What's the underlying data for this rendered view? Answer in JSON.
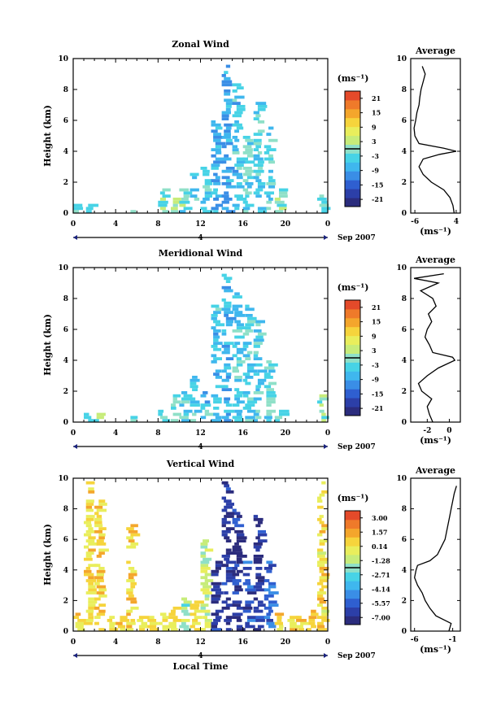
{
  "chart_data": [
    {
      "type": "heatmap",
      "title": "Zonal Wind",
      "ylabel": "Height (km)",
      "xlabel": "",
      "xlim": [
        0,
        24
      ],
      "ylim": [
        0,
        10
      ],
      "x_ticks": [
        "0",
        "4",
        "8",
        "12",
        "16",
        "20",
        "0"
      ],
      "y_ticks": [
        "0",
        "2",
        "4",
        "6",
        "8",
        "10"
      ],
      "date_marker": "4",
      "date_label": "Sep 2007",
      "colorbar_unit": "(ms⁻¹)",
      "colorbar_ticks": [
        "21",
        "15",
        "9",
        "3",
        "-3",
        "-9",
        "-15",
        "-21"
      ],
      "colorbar_range": [
        -24,
        24
      ],
      "cells": [
        {
          "x": 0.5,
          "ymax": 0.7,
          "v": -2
        },
        {
          "x": 1.5,
          "ymax": 0.6,
          "v": 1
        },
        {
          "x": 5.5,
          "ymax": 0.3,
          "v": 0
        },
        {
          "x": 8.5,
          "ymax": 1.5,
          "v": -1
        },
        {
          "x": 9.5,
          "ymax": 1.0,
          "v": 1
        },
        {
          "x": 10.5,
          "ymax": 1.5,
          "v": -2
        },
        {
          "x": 11.5,
          "ymax": 2.5,
          "v": -4
        },
        {
          "x": 12.5,
          "ymax": 3.0,
          "v": -5
        },
        {
          "x": 13.5,
          "ymax": 6.0,
          "v": -7
        },
        {
          "x": 14.5,
          "ymax": 9.6,
          "v": -8
        },
        {
          "x": 15.5,
          "ymax": 8.8,
          "v": -6
        },
        {
          "x": 16.5,
          "ymax": 5.0,
          "v": -3
        },
        {
          "x": 17.5,
          "ymax": 7.2,
          "v": -5
        },
        {
          "x": 18.5,
          "ymax": 5.5,
          "v": -4
        },
        {
          "x": 19.5,
          "ymax": 1.5,
          "v": 1
        },
        {
          "x": 23.5,
          "ymax": 1.2,
          "v": -1
        }
      ],
      "avg_profile": {
        "title": "Average",
        "xlabel": "(ms⁻¹)",
        "xlim": [
          -7,
          5
        ],
        "x_ticks": [
          "-6",
          "4"
        ],
        "y_ticks": [
          "0",
          "2",
          "4",
          "6",
          "8",
          "10"
        ],
        "height": [
          0,
          0.5,
          1,
          1.5,
          2,
          2.5,
          3,
          3.5,
          3.8,
          4.0,
          4.2,
          4.5,
          5,
          5.5,
          6,
          6.5,
          7,
          7.5,
          8,
          8.5,
          9,
          9.5
        ],
        "value": [
          3.5,
          3.2,
          2.5,
          1.0,
          -2,
          -4,
          -5,
          -4,
          0,
          4.0,
          1.0,
          -5,
          -6,
          -6.2,
          -5.8,
          -5.5,
          -5.0,
          -4.8,
          -4.5,
          -4.0,
          -3.5,
          -4.2
        ]
      }
    },
    {
      "type": "heatmap",
      "title": "Meridional Wind",
      "ylabel": "Height (km)",
      "xlabel": "",
      "xlim": [
        0,
        24
      ],
      "ylim": [
        0,
        10
      ],
      "x_ticks": [
        "0",
        "4",
        "8",
        "12",
        "16",
        "20",
        "0"
      ],
      "y_ticks": [
        "0",
        "2",
        "4",
        "6",
        "8",
        "10"
      ],
      "date_marker": "4",
      "date_label": "Sep 2007",
      "colorbar_unit": "(ms⁻¹)",
      "colorbar_ticks": [
        "21",
        "15",
        "9",
        "3",
        "-3",
        "-9",
        "-15",
        "-21"
      ],
      "colorbar_range": [
        -24,
        24
      ],
      "cells": [
        {
          "x": 1.5,
          "ymax": 0.7,
          "v": -2
        },
        {
          "x": 2.5,
          "ymax": 0.5,
          "v": 0
        },
        {
          "x": 5.5,
          "ymax": 0.4,
          "v": -1
        },
        {
          "x": 8.5,
          "ymax": 0.8,
          "v": -2
        },
        {
          "x": 9.5,
          "ymax": 1.8,
          "v": -3
        },
        {
          "x": 10.5,
          "ymax": 2.2,
          "v": -4
        },
        {
          "x": 11.5,
          "ymax": 3.0,
          "v": -4
        },
        {
          "x": 12.5,
          "ymax": 2.0,
          "v": -5
        },
        {
          "x": 13.5,
          "ymax": 7.5,
          "v": -6
        },
        {
          "x": 14.5,
          "ymax": 9.6,
          "v": -7
        },
        {
          "x": 15.5,
          "ymax": 8.5,
          "v": -5
        },
        {
          "x": 16.5,
          "ymax": 7.5,
          "v": -4
        },
        {
          "x": 17.5,
          "ymax": 6.5,
          "v": -4
        },
        {
          "x": 18.5,
          "ymax": 4.0,
          "v": -3
        },
        {
          "x": 19.5,
          "ymax": 0.8,
          "v": -1
        },
        {
          "x": 23.5,
          "ymax": 1.8,
          "v": 0
        }
      ],
      "avg_profile": {
        "title": "Average",
        "xlabel": "(ms⁻¹)",
        "xlim": [
          -3.5,
          1
        ],
        "x_ticks": [
          "-2",
          "0"
        ],
        "y_ticks": [
          "0",
          "2",
          "4",
          "6",
          "8",
          "10"
        ],
        "height": [
          0,
          0.5,
          1,
          1.5,
          2,
          2.5,
          3,
          3.5,
          4.0,
          4.2,
          4.5,
          5,
          5.5,
          6,
          6.5,
          7,
          7.5,
          8,
          8.5,
          9,
          9.3,
          9.6
        ],
        "value": [
          -1.5,
          -1.8,
          -2.0,
          -1.6,
          -2.5,
          -2.8,
          -2.0,
          -1.0,
          0.5,
          0.3,
          -1.5,
          -1.8,
          -2.2,
          -2.0,
          -1.6,
          -1.9,
          -1.2,
          -1.5,
          -2.6,
          -1.0,
          -3.2,
          -0.5
        ]
      }
    },
    {
      "type": "heatmap",
      "title": "Vertical Wind",
      "ylabel": "Height (km)",
      "xlabel": "Local Time",
      "xlim": [
        0,
        24
      ],
      "ylim": [
        0,
        10
      ],
      "x_ticks": [
        "0",
        "4",
        "8",
        "12",
        "16",
        "20",
        "0"
      ],
      "y_ticks": [
        "0",
        "2",
        "4",
        "6",
        "8",
        "10"
      ],
      "date_marker": "4",
      "date_label": "Sep 2007",
      "colorbar_unit": "(ms⁻¹)",
      "colorbar_ticks": [
        "3.00",
        "1.57",
        "0.14",
        "-1.28",
        "-2.71",
        "-4.14",
        "-5.57",
        "-7.00"
      ],
      "colorbar_range": [
        -7.7,
        3.7
      ],
      "cells": [
        {
          "x": 0.5,
          "ymax": 1.2,
          "v": 0.5
        },
        {
          "x": 1.5,
          "ymax": 9.8,
          "v": 0.4
        },
        {
          "x": 2.5,
          "ymax": 8.5,
          "v": 0.5
        },
        {
          "x": 3.5,
          "ymax": 1.0,
          "v": 0.4
        },
        {
          "x": 4.5,
          "ymax": 0.9,
          "v": 0.5
        },
        {
          "x": 5.5,
          "ymax": 7.0,
          "v": 0.5
        },
        {
          "x": 6.5,
          "ymax": 0.9,
          "v": 0.4
        },
        {
          "x": 7.5,
          "ymax": 0.9,
          "v": 0.4
        },
        {
          "x": 8.5,
          "ymax": 1.2,
          "v": 0.4
        },
        {
          "x": 9.5,
          "ymax": 1.5,
          "v": 0.5
        },
        {
          "x": 10.5,
          "ymax": 2.2,
          "v": -1.5
        },
        {
          "x": 11.5,
          "ymax": 2.0,
          "v": 0.2
        },
        {
          "x": 12.5,
          "ymax": 6.0,
          "v": -1.0
        },
        {
          "x": 13.5,
          "ymax": 4.8,
          "v": -6.5
        },
        {
          "x": 14.5,
          "ymax": 9.8,
          "v": -6.8
        },
        {
          "x": 15.5,
          "ymax": 8.0,
          "v": -6.5
        },
        {
          "x": 16.5,
          "ymax": 4.5,
          "v": -6.0
        },
        {
          "x": 17.5,
          "ymax": 7.5,
          "v": -6.5
        },
        {
          "x": 18.5,
          "ymax": 4.5,
          "v": -5.5
        },
        {
          "x": 19.5,
          "ymax": 1.2,
          "v": 0.4
        },
        {
          "x": 20.5,
          "ymax": 1.0,
          "v": 0.4
        },
        {
          "x": 21.5,
          "ymax": 1.0,
          "v": 0.4
        },
        {
          "x": 22.5,
          "ymax": 1.3,
          "v": 0.5
        },
        {
          "x": 23.5,
          "ymax": 9.8,
          "v": 0.3
        }
      ],
      "avg_profile": {
        "title": "Average",
        "xlabel": "(ms⁻¹)",
        "xlim": [
          -6.5,
          0
        ],
        "x_ticks": [
          "-6",
          "-1"
        ],
        "y_ticks": [
          "0",
          "2",
          "4",
          "6",
          "8",
          "10"
        ],
        "height": [
          0,
          0.5,
          1,
          1.5,
          2,
          2.5,
          3,
          3.5,
          4.0,
          4.3,
          4.6,
          5,
          5.5,
          6,
          6.5,
          7,
          7.5,
          8,
          8.5,
          9,
          9.5
        ],
        "value": [
          -1.5,
          -1.2,
          -3.2,
          -4.0,
          -4.6,
          -5.0,
          -5.6,
          -6.0,
          -5.8,
          -5.6,
          -4.0,
          -3.0,
          -2.5,
          -2.0,
          -1.8,
          -1.6,
          -1.4,
          -1.2,
          -1.0,
          -0.8,
          -0.5
        ]
      }
    }
  ]
}
